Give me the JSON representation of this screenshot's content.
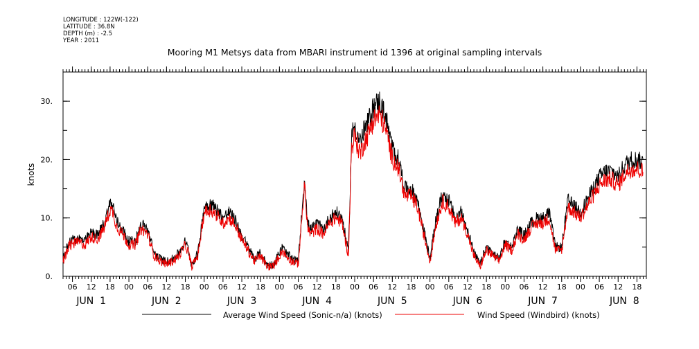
{
  "header": {
    "meta_lines": [
      "LONGITUDE : 122W(-122)",
      "LATITUDE : 36.8N",
      "DEPTH (m) : -2.5",
      "YEAR : 2011"
    ]
  },
  "chart_data": {
    "type": "line",
    "title": "Mooring M1 Metsys data from MBARI instrument id 1396 at original sampling intervals",
    "ylabel": "knots",
    "xlabel": "",
    "ylim": [
      0,
      35
    ],
    "xlim_hours": [
      3,
      189
    ],
    "y_ticks": [
      0,
      10,
      20,
      30
    ],
    "y_tick_labels": [
      "0.",
      "10.",
      "20.",
      "30."
    ],
    "x_hour_ticks": [
      {
        "h": 6,
        "label": "06"
      },
      {
        "h": 12,
        "label": "12"
      },
      {
        "h": 18,
        "label": "18"
      },
      {
        "h": 24,
        "label": "00"
      },
      {
        "h": 30,
        "label": "06"
      },
      {
        "h": 36,
        "label": "12"
      },
      {
        "h": 42,
        "label": "18"
      },
      {
        "h": 48,
        "label": "00"
      },
      {
        "h": 54,
        "label": "06"
      },
      {
        "h": 60,
        "label": "12"
      },
      {
        "h": 66,
        "label": "18"
      },
      {
        "h": 72,
        "label": "00"
      },
      {
        "h": 78,
        "label": "06"
      },
      {
        "h": 84,
        "label": "12"
      },
      {
        "h": 90,
        "label": "18"
      },
      {
        "h": 96,
        "label": "00"
      },
      {
        "h": 102,
        "label": "06"
      },
      {
        "h": 108,
        "label": "12"
      },
      {
        "h": 114,
        "label": "18"
      },
      {
        "h": 120,
        "label": "00"
      },
      {
        "h": 126,
        "label": "06"
      },
      {
        "h": 132,
        "label": "12"
      },
      {
        "h": 138,
        "label": "18"
      },
      {
        "h": 144,
        "label": "00"
      },
      {
        "h": 150,
        "label": "06"
      },
      {
        "h": 156,
        "label": "12"
      },
      {
        "h": 162,
        "label": "18"
      },
      {
        "h": 168,
        "label": "00"
      },
      {
        "h": 174,
        "label": "06"
      },
      {
        "h": 180,
        "label": "12"
      },
      {
        "h": 186,
        "label": "18"
      }
    ],
    "x_day_labels": [
      {
        "h": 12,
        "label": "JUN  1"
      },
      {
        "h": 36,
        "label": "JUN  2"
      },
      {
        "h": 60,
        "label": "JUN  3"
      },
      {
        "h": 84,
        "label": "JUN  4"
      },
      {
        "h": 108,
        "label": "JUN  5"
      },
      {
        "h": 132,
        "label": "JUN  6"
      },
      {
        "h": 156,
        "label": "JUN  7"
      },
      {
        "h": 182,
        "label": "JUN  8"
      }
    ],
    "series": [
      {
        "name": "Average Wind Speed (Sonic-n/a) (knots)",
        "color": "#000000",
        "x": [
          3,
          5,
          8,
          10,
          12,
          14,
          16,
          18,
          19,
          20,
          22,
          24,
          26,
          28,
          30,
          32,
          34,
          36,
          38,
          40,
          42,
          43,
          44,
          46,
          48,
          50,
          52,
          54,
          56,
          58,
          60,
          62,
          64,
          66,
          68,
          70,
          71,
          72,
          73,
          74,
          76,
          78,
          80,
          81,
          82,
          84,
          86,
          88,
          90,
          92,
          94,
          95,
          96,
          97,
          98,
          99,
          100,
          102,
          104,
          106,
          108,
          110,
          112,
          114,
          116,
          118,
          120,
          122,
          124,
          126,
          128,
          130,
          132,
          134,
          136,
          138,
          140,
          142,
          144,
          146,
          148,
          150,
          152,
          154,
          156,
          158,
          160,
          162,
          164,
          166,
          168,
          170,
          172,
          174,
          176,
          178,
          180,
          182,
          184,
          186,
          188
        ],
        "y": [
          3,
          6,
          6.5,
          6,
          7.5,
          7,
          9,
          12.5,
          12,
          9.5,
          8,
          6,
          6,
          9,
          8,
          4,
          3,
          2.5,
          3,
          4,
          6,
          4.5,
          2,
          4,
          12,
          12.5,
          11.5,
          10,
          11,
          9.5,
          7,
          5,
          3,
          4,
          2,
          2,
          3,
          4,
          5,
          4,
          3,
          2.5,
          17,
          9,
          8,
          9,
          8,
          10,
          11,
          10,
          4,
          24,
          26,
          24,
          23,
          25,
          26,
          29,
          30,
          27,
          22,
          20,
          15,
          15,
          13,
          8,
          3,
          10,
          14,
          13,
          10,
          11,
          8,
          4,
          2,
          5,
          4,
          3,
          6,
          5,
          8,
          7,
          9,
          10,
          10,
          11,
          5,
          5,
          13,
          12,
          11,
          13,
          15,
          17,
          18,
          18,
          17,
          19,
          20,
          20,
          19.5
        ],
        "_note": "digitized"
      }
    ]
  },
  "legend": {
    "series1_label": "Average Wind Speed (Sonic-n/a) (knots)",
    "series2_label": "Wind Speed (Windbird) (knots)"
  },
  "colors": {
    "series1": "#000000",
    "series2": "#ee0000",
    "axis": "#000000"
  }
}
